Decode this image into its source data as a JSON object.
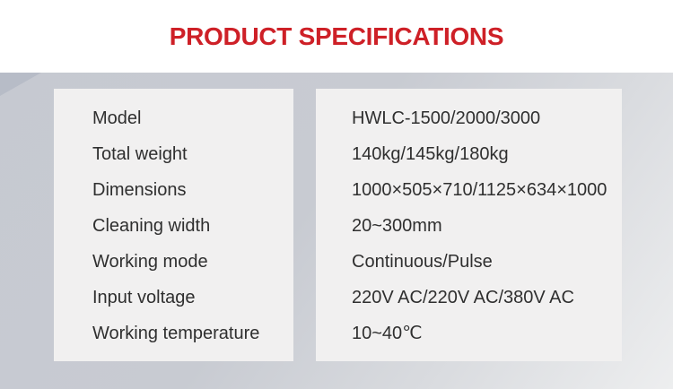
{
  "page": {
    "title": "PRODUCT SPECIFICATIONS"
  },
  "colors": {
    "title_red": "#ce2027",
    "band_gray": "#c8cbd2",
    "band_light": "#edeeef",
    "corner_accent_gray": "#b7bcc7",
    "panel_bg": "#f1f0f0",
    "text": "#2f2f2f"
  },
  "specs": {
    "rows": [
      {
        "label": "Model",
        "value": "HWLC-1500/2000/3000"
      },
      {
        "label": "Total weight",
        "value": "140kg/145kg/180kg"
      },
      {
        "label": "Dimensions",
        "value": "1000×505×710/1125×634×1000"
      },
      {
        "label": "Cleaning width",
        "value": "20~300mm"
      },
      {
        "label": "Working mode",
        "value": "Continuous/Pulse"
      },
      {
        "label": "Input voltage",
        "value": "220V AC/220V AC/380V AC"
      },
      {
        "label": "Working temperature",
        "value": "10~40℃"
      }
    ]
  }
}
